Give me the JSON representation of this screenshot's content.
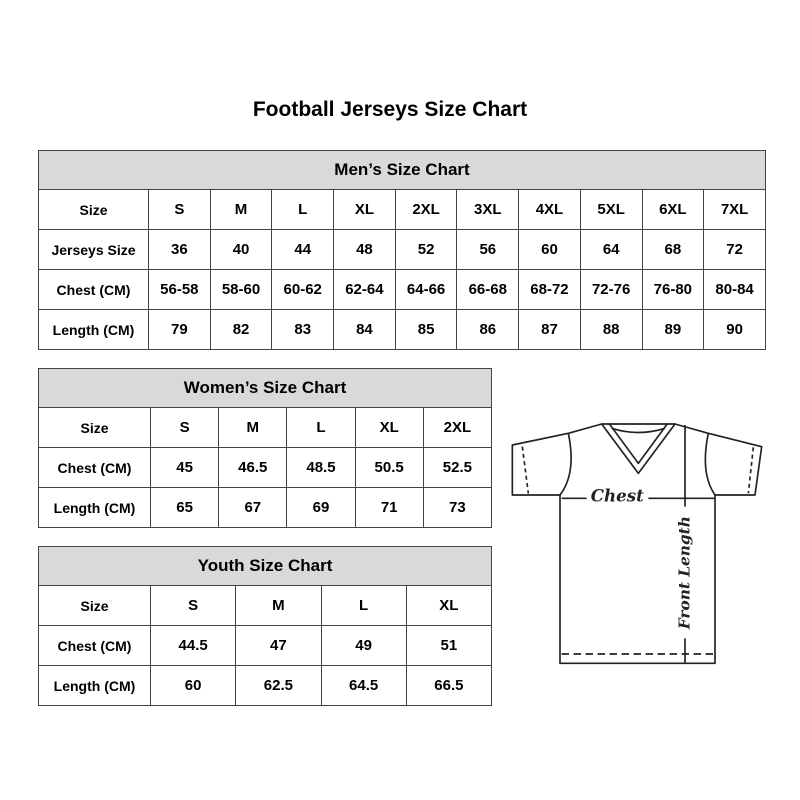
{
  "title": "Football Jerseys Size Chart",
  "men": {
    "heading": "Men’s Size Chart",
    "rows": [
      {
        "label": "Size",
        "values": [
          "S",
          "M",
          "L",
          "XL",
          "2XL",
          "3XL",
          "4XL",
          "5XL",
          "6XL",
          "7XL"
        ]
      },
      {
        "label": "Jerseys Size",
        "values": [
          "36",
          "40",
          "44",
          "48",
          "52",
          "56",
          "60",
          "64",
          "68",
          "72"
        ]
      },
      {
        "label": "Chest (CM)",
        "values": [
          "56-58",
          "58-60",
          "60-62",
          "62-64",
          "64-66",
          "66-68",
          "68-72",
          "72-76",
          "76-80",
          "80-84"
        ]
      },
      {
        "label": "Length (CM)",
        "values": [
          "79",
          "82",
          "83",
          "84",
          "85",
          "86",
          "87",
          "88",
          "89",
          "90"
        ]
      }
    ]
  },
  "women": {
    "heading": "Women’s Size Chart",
    "rows": [
      {
        "label": "Size",
        "values": [
          "S",
          "M",
          "L",
          "XL",
          "2XL"
        ]
      },
      {
        "label": "Chest (CM)",
        "values": [
          "45",
          "46.5",
          "48.5",
          "50.5",
          "52.5"
        ]
      },
      {
        "label": "Length (CM)",
        "values": [
          "65",
          "67",
          "69",
          "71",
          "73"
        ]
      }
    ]
  },
  "youth": {
    "heading": "Youth Size Chart",
    "rows": [
      {
        "label": "Size",
        "values": [
          "S",
          "M",
          "L",
          "XL"
        ]
      },
      {
        "label": "Chest (CM)",
        "values": [
          "44.5",
          "47",
          "49",
          "51"
        ]
      },
      {
        "label": "Length (CM)",
        "values": [
          "60",
          "62.5",
          "64.5",
          "66.5"
        ]
      }
    ]
  },
  "diagram": {
    "chest_label": "Chest",
    "length_label": "Front Length"
  },
  "colors": {
    "header_bg": "#d9d9d9",
    "border": "#444444"
  }
}
